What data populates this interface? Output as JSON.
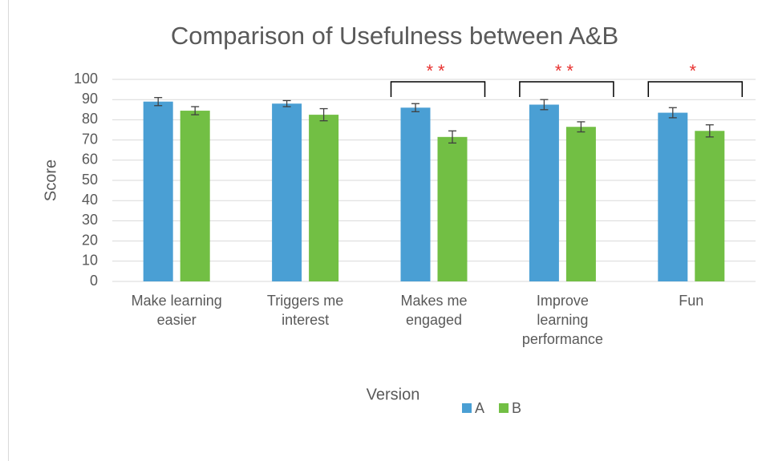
{
  "chart_data": {
    "type": "bar",
    "title": "Comparison of Usefulness between A&B",
    "x_label": "Version",
    "y_label": "Score",
    "categories": [
      "Make learning\neasier",
      "Triggers me\ninterest",
      "Makes me\nengaged",
      "Improve\nlearning\nperformance",
      "Fun"
    ],
    "series": [
      {
        "name": "A",
        "color": "#4a9fd4",
        "values": [
          89,
          88,
          86,
          87.5,
          83.5
        ],
        "errors": [
          2,
          1.5,
          2,
          2.5,
          2.5
        ]
      },
      {
        "name": "B",
        "color": "#72bf44",
        "values": [
          84.5,
          82.5,
          71.5,
          76.5,
          74.5
        ],
        "errors": [
          2,
          3,
          3,
          2.5,
          3
        ]
      }
    ],
    "significance": [
      null,
      null,
      "**",
      "**",
      "*"
    ],
    "significance_color": "#e8312f",
    "ylim": [
      0,
      100
    ],
    "yticks": [
      0,
      10,
      20,
      30,
      40,
      50,
      60,
      70,
      80,
      90,
      100
    ],
    "grid": true,
    "legend": "bottom"
  }
}
